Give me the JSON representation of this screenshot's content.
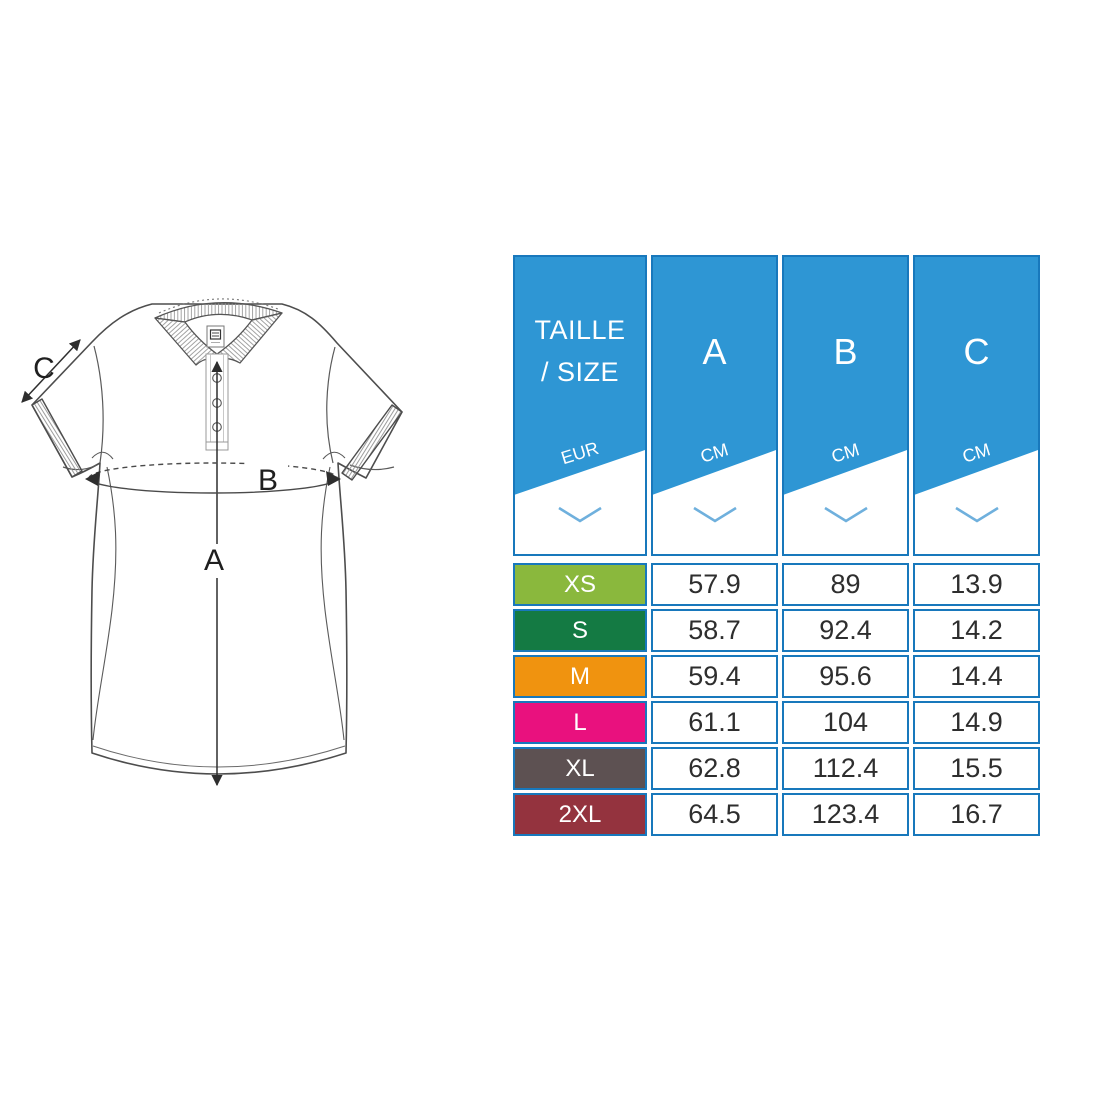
{
  "diagram": {
    "labels": {
      "length": "A",
      "chest": "B",
      "sleeve": "C"
    },
    "line_color": "#4d4d4d"
  },
  "table": {
    "header": {
      "size_column": {
        "title_line1": "TAILLE",
        "title_line2": "/ SIZE",
        "unit": "EUR"
      },
      "measure_columns": [
        {
          "label": "A",
          "unit": "CM"
        },
        {
          "label": "B",
          "unit": "CM"
        },
        {
          "label": "C",
          "unit": "CM"
        }
      ]
    },
    "rows": [
      {
        "size": "XS",
        "color": "#8ab83d",
        "values": [
          "57.9",
          "89",
          "13.9"
        ]
      },
      {
        "size": "S",
        "color": "#147a43",
        "values": [
          "58.7",
          "92.4",
          "14.2"
        ]
      },
      {
        "size": "M",
        "color": "#f0930f",
        "values": [
          "59.4",
          "95.6",
          "14.4"
        ]
      },
      {
        "size": "L",
        "color": "#e9117e",
        "values": [
          "61.1",
          "104",
          "14.9"
        ]
      },
      {
        "size": "XL",
        "color": "#5d5152",
        "values": [
          "62.8",
          "112.4",
          "15.5"
        ]
      },
      {
        "size": "2XL",
        "color": "#94333e",
        "values": [
          "64.5",
          "123.4",
          "16.7"
        ]
      }
    ],
    "colors": {
      "header_fill": "#2e96d4",
      "cell_border": "#1878bc",
      "chevron": "#6fb0dd",
      "header_text": "#ffffff",
      "value_text": "#2e2e2e"
    }
  }
}
